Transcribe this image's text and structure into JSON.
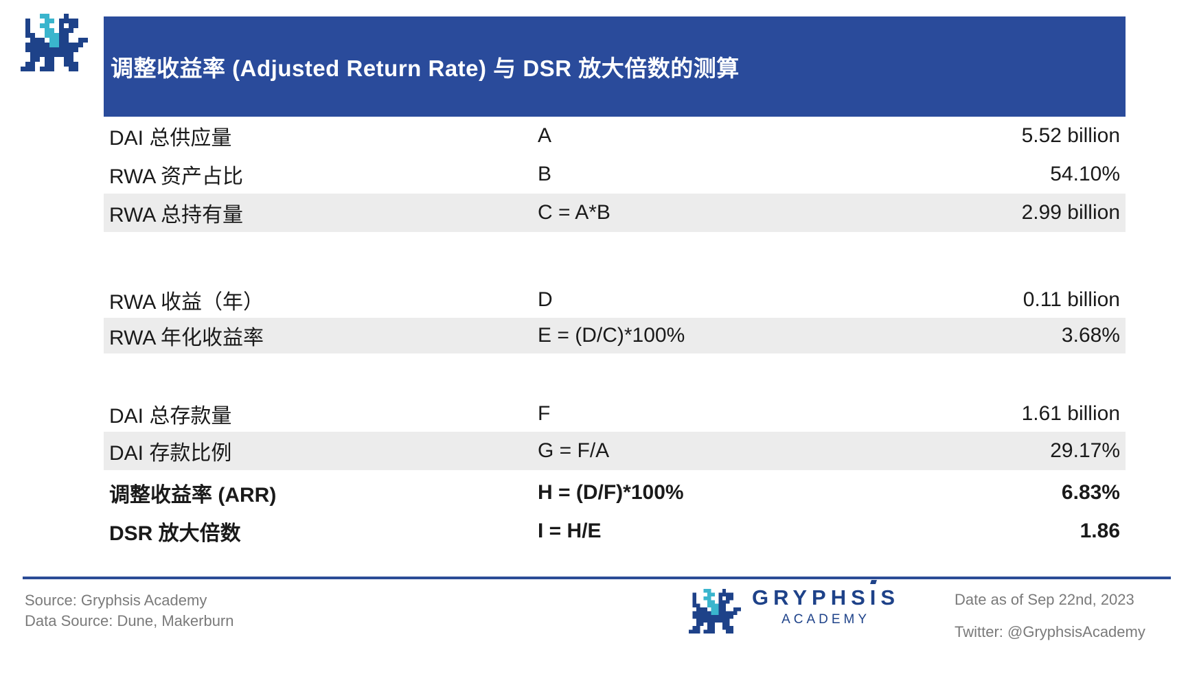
{
  "header": {
    "title": "调整收益率 (Adjusted Return Rate) 与 DSR 放大倍数的测算"
  },
  "chart_data": {
    "type": "table",
    "title": "调整收益率 (Adjusted Return Rate) 与 DSR 放大倍数的测算",
    "rows": [
      {
        "label": "DAI 总供应量",
        "formula": "A",
        "value": "5.52 billion"
      },
      {
        "label": "RWA 资产占比",
        "formula": "B",
        "value": "54.10%"
      },
      {
        "label": "RWA 总持有量",
        "formula": "C = A*B",
        "value": "2.99 billion"
      },
      {
        "label": "RWA 收益（年）",
        "formula": "D",
        "value": "0.11 billion"
      },
      {
        "label": "RWA 年化收益率",
        "formula": "E = (D/C)*100%",
        "value": "3.68%"
      },
      {
        "label": "DAI 总存款量",
        "formula": "F",
        "value": "1.61 billion"
      },
      {
        "label": "DAI 存款比例",
        "formula": "G = F/A",
        "value": "29.17%"
      },
      {
        "label": "调整收益率 (ARR)",
        "formula": "H = (D/F)*100%",
        "value": "6.83%"
      },
      {
        "label": "DSR 放大倍数",
        "formula": "I = H/E",
        "value": "1.86"
      }
    ]
  },
  "footer": {
    "source": "Source: Gryphsis Academy",
    "data_source": "Data Source: Dune, Makerburn",
    "date": "Date as of Sep 22nd, 2023",
    "twitter": "Twitter: @GryphsisAcademy",
    "wordmark": {
      "left": "GRYPHS",
      "accent_i": "I",
      "right": "S",
      "sub": "ACADEMY"
    }
  },
  "icons": {
    "top_left_logo": "pixel-dragon-logo",
    "footer_logo": "pixel-dragon-logo"
  },
  "colors": {
    "header_blue": "#2A4B9B",
    "row_gray": "#ECECEC",
    "navy": "#1E4289",
    "teal": "#3AB5CD",
    "footer_gray": "#7A7A7A",
    "divider_navy": "#2B4C96",
    "text_black": "#1A1A1A",
    "white": "#FFFFFF"
  }
}
